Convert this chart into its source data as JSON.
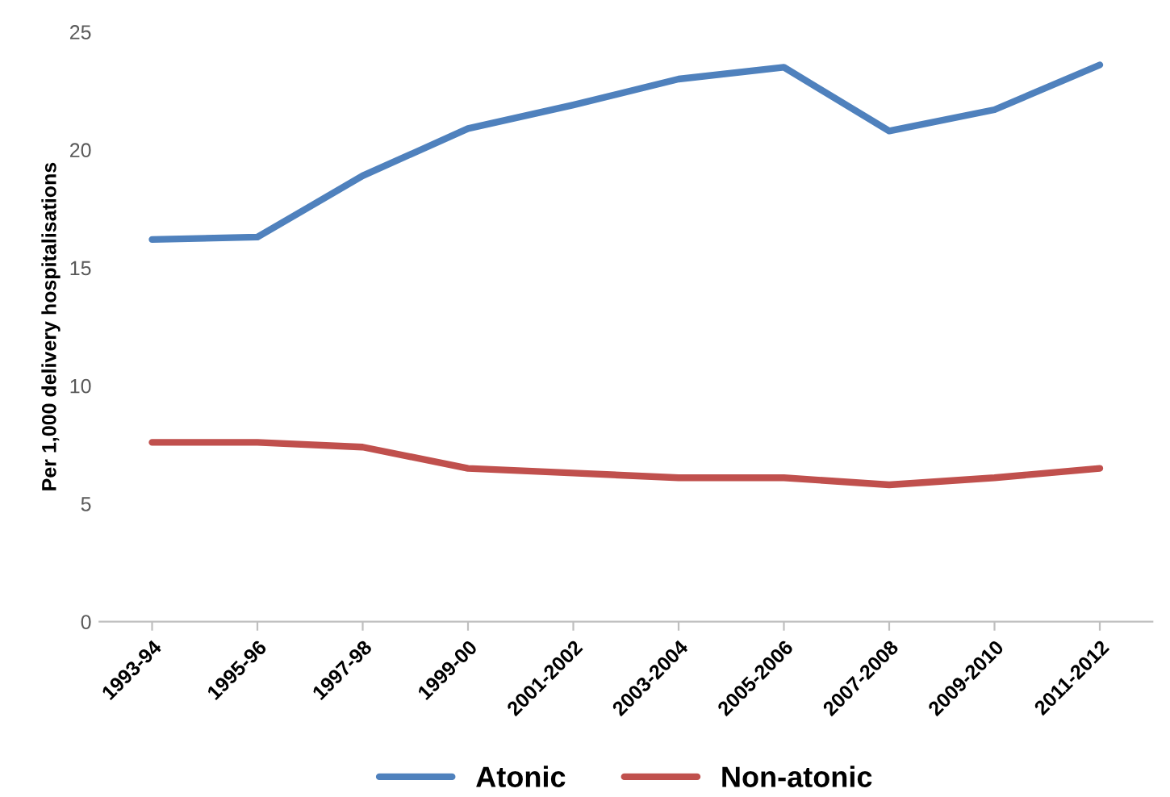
{
  "chart_data": {
    "type": "line",
    "ylabel": "Per 1,000 delivery hospitalisations",
    "categories": [
      "1993-94",
      "1995-96",
      "1997-98",
      "1999-00",
      "2001-2002",
      "2003-2004",
      "2005-2006",
      "2007-2008",
      "2009-2010",
      "2011-2012"
    ],
    "series": [
      {
        "name": "Atonic",
        "color": "#4f81bd",
        "values": [
          16.2,
          16.3,
          18.9,
          20.9,
          21.9,
          23.0,
          23.5,
          20.8,
          21.7,
          23.6
        ]
      },
      {
        "name": "Non-atonic",
        "color": "#c0504d",
        "values": [
          7.6,
          7.6,
          7.4,
          6.5,
          6.3,
          6.1,
          6.1,
          5.8,
          6.1,
          6.5
        ]
      }
    ],
    "ylim": [
      0,
      25
    ],
    "yticks": [
      0,
      5,
      10,
      15,
      20,
      25
    ],
    "grid": false,
    "legend": "bottom",
    "marker": "none",
    "line_style": "solid"
  }
}
